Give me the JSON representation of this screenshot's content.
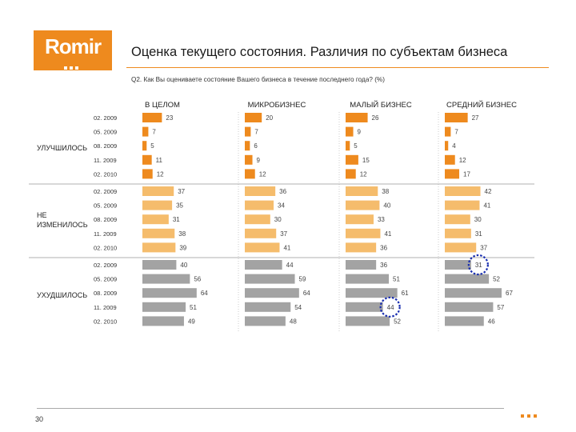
{
  "logo": {
    "text": "Romir"
  },
  "page": {
    "title": "Оценка текущего состояния. Различия по субъектам бизнеса",
    "question": "Q2. Как Вы оцениваете состояние Вашего бизнеса в течение последнего года? (%)",
    "page_number": "30"
  },
  "chart_data": {
    "type": "bar",
    "orientation": "horizontal",
    "columns": [
      "В ЦЕЛОМ",
      "МИКРОБИЗНЕС",
      "МАЛЫЙ БИЗНЕС",
      "СРЕДНИЙ БИЗНЕС"
    ],
    "periods": [
      "02. 2009",
      "05. 2009",
      "08. 2009",
      "11. 2009",
      "02. 2010"
    ],
    "groups": [
      {
        "label": "УЛУЧШИЛОСЬ",
        "color": "#ee8a1e",
        "values": [
          [
            23,
            7,
            5,
            11,
            12
          ],
          [
            20,
            7,
            6,
            9,
            12
          ],
          [
            26,
            9,
            5,
            15,
            12
          ],
          [
            27,
            7,
            4,
            12,
            17
          ]
        ]
      },
      {
        "label": "НЕ ИЗМЕНИЛОСЬ",
        "color": "#f5bc6c",
        "values": [
          [
            37,
            35,
            31,
            38,
            39
          ],
          [
            36,
            34,
            30,
            37,
            41
          ],
          [
            38,
            40,
            33,
            41,
            36
          ],
          [
            42,
            41,
            30,
            31,
            37
          ]
        ]
      },
      {
        "label": "УХУДШИЛОСЬ",
        "color": "#a3a3a3",
        "values": [
          [
            40,
            56,
            64,
            51,
            49
          ],
          [
            44,
            59,
            64,
            54,
            48
          ],
          [
            36,
            51,
            61,
            44,
            52
          ],
          [
            31,
            52,
            67,
            57,
            46
          ]
        ]
      }
    ],
    "highlighted": [
      {
        "group": "УХУДШИЛОСЬ",
        "column": "МАЛЫЙ БИЗНЕС",
        "period": "11. 2009",
        "value": 44
      },
      {
        "group": "УХУДШИЛОСЬ",
        "column": "СРЕДНИЙ БИЗНЕС",
        "period": "02. 2009",
        "value": 31
      }
    ],
    "grid": false,
    "legend": "none"
  }
}
